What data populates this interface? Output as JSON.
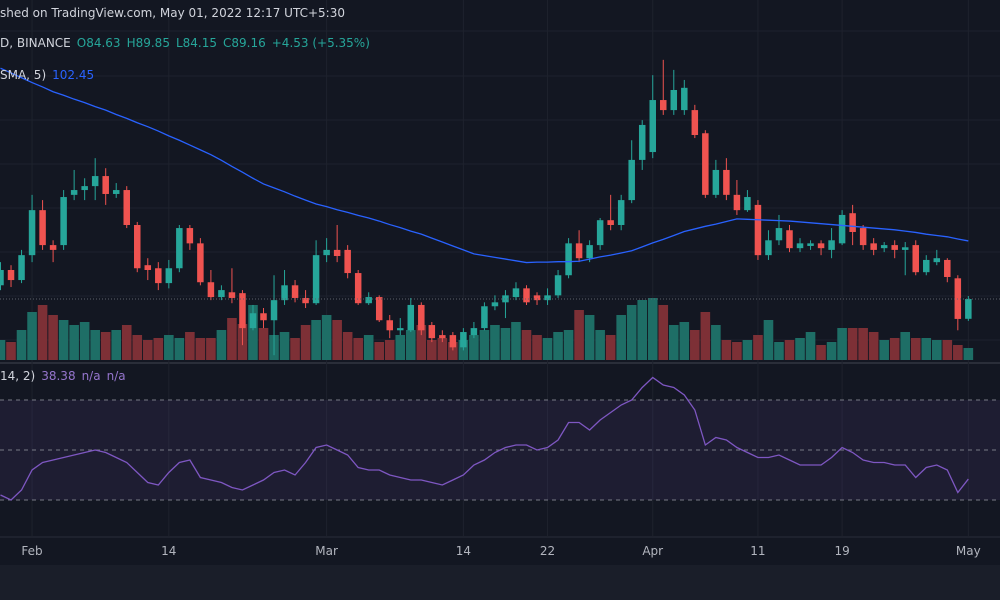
{
  "header": {
    "published": "shed on TradingView.com, May 01, 2022 12:17 UTC+5:30",
    "symbol": "D, BINANCE",
    "open": "O84.63",
    "high": "H89.85",
    "low": "L84.15",
    "close": "C89.16",
    "change": "+4.53 (+5.35%)"
  },
  "chart_data": {
    "type": "candlestick",
    "x": [
      "2022-01-29",
      "2022-01-30",
      "2022-01-31",
      "2022-02-01",
      "2022-02-02",
      "2022-02-03",
      "2022-02-04",
      "2022-02-05",
      "2022-02-06",
      "2022-02-07",
      "2022-02-08",
      "2022-02-09",
      "2022-02-10",
      "2022-02-11",
      "2022-02-12",
      "2022-02-13",
      "2022-02-14",
      "2022-02-15",
      "2022-02-16",
      "2022-02-17",
      "2022-02-18",
      "2022-02-19",
      "2022-02-20",
      "2022-02-21",
      "2022-02-22",
      "2022-02-23",
      "2022-02-24",
      "2022-02-25",
      "2022-02-26",
      "2022-02-27",
      "2022-02-28",
      "2022-03-01",
      "2022-03-02",
      "2022-03-03",
      "2022-03-04",
      "2022-03-05",
      "2022-03-06",
      "2022-03-07",
      "2022-03-08",
      "2022-03-09",
      "2022-03-10",
      "2022-03-11",
      "2022-03-12",
      "2022-03-13",
      "2022-03-14",
      "2022-03-15",
      "2022-03-16",
      "2022-03-17",
      "2022-03-18",
      "2022-03-19",
      "2022-03-20",
      "2022-03-21",
      "2022-03-22",
      "2022-03-23",
      "2022-03-24",
      "2022-03-25",
      "2022-03-26",
      "2022-03-27",
      "2022-03-28",
      "2022-03-29",
      "2022-03-30",
      "2022-03-31",
      "2022-04-01",
      "2022-04-02",
      "2022-04-03",
      "2022-04-04",
      "2022-04-05",
      "2022-04-06",
      "2022-04-07",
      "2022-04-08",
      "2022-04-09",
      "2022-04-10",
      "2022-04-11",
      "2022-04-12",
      "2022-04-13",
      "2022-04-14",
      "2022-04-15",
      "2022-04-16",
      "2022-04-17",
      "2022-04-18",
      "2022-04-19",
      "2022-04-20",
      "2022-04-21",
      "2022-04-22",
      "2022-04-23",
      "2022-04-24",
      "2022-04-25",
      "2022-04-26",
      "2022-04-27",
      "2022-04-28",
      "2022-04-29",
      "2022-04-30",
      "2022-05-01"
    ],
    "open": [
      92.3,
      95.8,
      93.5,
      99.2,
      109.5,
      101.5,
      101.5,
      113.0,
      114.1,
      115.0,
      117.3,
      113.2,
      114.1,
      106.1,
      96.9,
      96.2,
      92.8,
      96.2,
      105.4,
      101.9,
      93.0,
      89.6,
      90.7,
      90.5,
      82.5,
      85.9,
      84.3,
      88.9,
      92.3,
      89.4,
      88.2,
      99.2,
      100.4,
      100.4,
      95.1,
      88.2,
      89.6,
      84.3,
      82.0,
      82.0,
      87.8,
      83.2,
      80.9,
      80.9,
      78.1,
      80.9,
      82.5,
      87.5,
      88.4,
      89.6,
      91.6,
      90.0,
      88.9,
      90.0,
      94.6,
      101.9,
      98.5,
      101.5,
      107.2,
      106.1,
      111.8,
      121.0,
      122.8,
      134.7,
      132.4,
      132.4,
      132.4,
      127.1,
      113.0,
      118.7,
      113.0,
      109.5,
      110.7,
      99.2,
      102.6,
      104.9,
      100.8,
      101.3,
      101.9,
      100.4,
      101.9,
      108.8,
      105.4,
      101.9,
      100.8,
      101.5,
      100.4,
      101.5,
      95.3,
      97.6,
      98.1,
      93.9,
      84.63
    ],
    "high": [
      97.6,
      96.9,
      100.4,
      113.0,
      111.8,
      102.6,
      114.1,
      118.7,
      116.8,
      121.4,
      119.1,
      115.7,
      115.0,
      106.8,
      98.5,
      97.6,
      98.1,
      106.1,
      106.1,
      103.1,
      95.8,
      92.3,
      96.2,
      91.2,
      87.8,
      87.1,
      94.6,
      95.8,
      93.5,
      91.2,
      102.6,
      103.1,
      106.1,
      101.5,
      95.8,
      90.7,
      90.0,
      85.5,
      84.8,
      89.4,
      88.4,
      83.9,
      82.0,
      81.6,
      82.5,
      83.9,
      88.4,
      90.0,
      91.2,
      93.0,
      92.3,
      90.7,
      91.6,
      95.8,
      103.1,
      104.9,
      102.6,
      107.7,
      113.0,
      113.0,
      125.5,
      130.1,
      140.4,
      143.9,
      141.6,
      139.3,
      133.6,
      127.8,
      121.0,
      121.4,
      116.4,
      114.1,
      111.8,
      104.9,
      108.4,
      106.1,
      103.1,
      102.6,
      102.6,
      105.4,
      109.5,
      110.7,
      106.1,
      103.1,
      102.2,
      102.6,
      102.2,
      102.6,
      99.2,
      100.4,
      98.5,
      94.6,
      89.85
    ],
    "low": [
      91.2,
      91.9,
      92.8,
      97.6,
      100.4,
      97.6,
      100.4,
      111.8,
      111.8,
      111.8,
      110.7,
      112.3,
      105.4,
      95.3,
      93.5,
      91.2,
      91.6,
      95.3,
      100.4,
      92.3,
      88.9,
      88.9,
      88.2,
      78.6,
      82.0,
      82.5,
      76.3,
      87.8,
      88.4,
      87.1,
      87.8,
      97.6,
      97.6,
      93.9,
      87.8,
      87.8,
      83.9,
      80.2,
      80.9,
      81.6,
      80.9,
      79.3,
      79.3,
      77.4,
      77.4,
      80.2,
      82.0,
      86.6,
      84.8,
      88.9,
      87.8,
      87.8,
      87.8,
      89.4,
      93.9,
      97.6,
      97.6,
      100.4,
      104.9,
      104.9,
      111.1,
      118.7,
      121.4,
      131.3,
      131.3,
      131.3,
      126.0,
      112.3,
      112.3,
      111.8,
      108.4,
      109.1,
      98.1,
      98.1,
      101.5,
      99.9,
      99.9,
      100.4,
      99.2,
      98.5,
      101.5,
      101.5,
      100.4,
      99.2,
      99.9,
      98.5,
      94.6,
      94.6,
      94.6,
      96.9,
      93.0,
      82.0,
      84.15
    ],
    "close": [
      95.8,
      93.5,
      99.2,
      109.5,
      101.5,
      100.4,
      112.5,
      114.1,
      115.0,
      117.3,
      113.2,
      114.1,
      106.1,
      96.2,
      95.8,
      92.8,
      96.2,
      105.4,
      101.9,
      93.0,
      89.6,
      91.2,
      89.4,
      82.5,
      85.9,
      84.3,
      88.9,
      92.3,
      89.4,
      88.2,
      99.2,
      100.4,
      99.0,
      95.1,
      88.2,
      89.6,
      84.3,
      82.0,
      82.5,
      87.8,
      82.0,
      80.2,
      80.2,
      78.1,
      81.6,
      82.5,
      87.5,
      88.4,
      90.0,
      91.6,
      88.4,
      88.9,
      90.0,
      94.6,
      101.9,
      98.5,
      101.5,
      107.2,
      106.1,
      111.8,
      121.0,
      129.0,
      134.7,
      132.4,
      137.0,
      137.5,
      126.7,
      113.0,
      118.7,
      113.0,
      109.5,
      112.5,
      99.2,
      102.6,
      105.4,
      100.8,
      101.9,
      101.9,
      100.8,
      102.6,
      108.4,
      104.5,
      101.5,
      100.4,
      101.5,
      100.4,
      101.0,
      95.3,
      98.1,
      98.5,
      94.2,
      84.6,
      89.16
    ],
    "up_color": "#26a69a",
    "down_color": "#ef5350",
    "ylim": [
      75.2,
      157.6
    ],
    "xticks": [
      {
        "value": "2022-02-01",
        "label": "Feb"
      },
      {
        "value": "2022-02-14",
        "label": "14"
      },
      {
        "value": "2022-03-01",
        "label": "Mar"
      },
      {
        "value": "2022-03-14",
        "label": "14"
      },
      {
        "value": "2022-03-22",
        "label": "22"
      },
      {
        "value": "2022-04-01",
        "label": "Apr"
      },
      {
        "value": "2022-04-11",
        "label": "11"
      },
      {
        "value": "2022-04-19",
        "label": "19"
      },
      {
        "value": "2022-05-01",
        "label": "May"
      }
    ],
    "grid": true,
    "volume": {
      "values": [
        20,
        18,
        30,
        48,
        55,
        45,
        40,
        35,
        38,
        30,
        28,
        30,
        35,
        25,
        20,
        22,
        25,
        22,
        28,
        22,
        22,
        30,
        42,
        36,
        55,
        32,
        25,
        28,
        22,
        35,
        40,
        45,
        40,
        28,
        22,
        25,
        18,
        20,
        25,
        30,
        35,
        20,
        22,
        18,
        20,
        25,
        30,
        35,
        32,
        38,
        30,
        25,
        22,
        28,
        30,
        50,
        45,
        30,
        25,
        45,
        55,
        60,
        62,
        55,
        35,
        38,
        30,
        48,
        35,
        20,
        18,
        20,
        25,
        40,
        18,
        20,
        22,
        28,
        15,
        18,
        32,
        32,
        32,
        28,
        20,
        22,
        28,
        22,
        22,
        20,
        20,
        15,
        12
      ],
      "ylim": [
        0,
        100
      ],
      "up_color": "#1e6e66",
      "down_color": "#7d3036"
    },
    "sma": {
      "name": "SMA, 5)",
      "last_label": "102.45",
      "color": "#2962ff",
      "values": [
        142.0,
        140.9,
        139.8,
        138.7,
        137.7,
        136.6,
        135.8,
        134.9,
        134.1,
        133.2,
        132.4,
        131.4,
        130.5,
        129.5,
        128.6,
        127.6,
        126.5,
        125.5,
        124.4,
        123.3,
        122.2,
        120.9,
        119.5,
        118.2,
        116.8,
        115.5,
        114.6,
        113.7,
        112.7,
        111.8,
        110.9,
        110.3,
        109.6,
        109.0,
        108.3,
        107.7,
        107.0,
        106.2,
        105.5,
        104.7,
        104.0,
        103.1,
        102.2,
        101.3,
        100.4,
        99.5,
        99.1,
        98.7,
        98.3,
        97.9,
        97.5,
        97.6,
        97.6,
        97.7,
        97.7,
        97.8,
        98.3,
        98.8,
        99.2,
        99.7,
        100.2,
        101.1,
        102.0,
        102.8,
        103.7,
        104.6,
        105.2,
        105.8,
        106.3,
        106.9,
        107.5,
        107.4,
        107.3,
        107.2,
        107.1,
        107.0,
        106.8,
        106.6,
        106.4,
        106.2,
        106.0,
        105.8,
        105.6,
        105.4,
        105.2,
        105.0,
        104.7,
        104.4,
        104.0,
        103.7,
        103.4,
        102.9,
        102.45
      ]
    },
    "rsi": {
      "name": "14, 2)",
      "last_label": "38.38",
      "extra": [
        "n/a",
        "n/a"
      ],
      "color": "#7e57c2",
      "ylim": [
        15.2,
        82
      ],
      "bands": [
        30,
        50,
        70
      ],
      "values": [
        32,
        30,
        34,
        42,
        45,
        46,
        47,
        48,
        49,
        50,
        49,
        47,
        45,
        41,
        37,
        36,
        41,
        45,
        46,
        39,
        38,
        37,
        35,
        34,
        36,
        38,
        41,
        42,
        40,
        45,
        51,
        52,
        50,
        48,
        43,
        42,
        42,
        40,
        39,
        38,
        38,
        37,
        36,
        38,
        40,
        44,
        46,
        49,
        51,
        52,
        52,
        50,
        51,
        54,
        61,
        61,
        58,
        62,
        65,
        68,
        70,
        75,
        79,
        76,
        75,
        72,
        66,
        52,
        55,
        54,
        51,
        49,
        47,
        47,
        48,
        46,
        44,
        44,
        44,
        47,
        51,
        49,
        46,
        45,
        45,
        44,
        44,
        39,
        43,
        44,
        42,
        33,
        38.38
      ]
    }
  }
}
